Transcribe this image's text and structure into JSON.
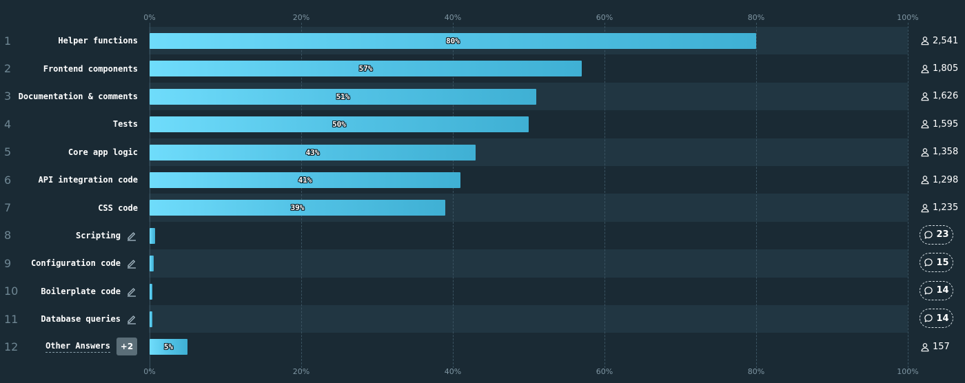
{
  "chart_data": {
    "type": "bar",
    "orientation": "horizontal",
    "xlim": [
      0,
      100
    ],
    "x_ticks": [
      "0%",
      "20%",
      "40%",
      "60%",
      "80%",
      "100%"
    ],
    "grid": true,
    "rows": [
      {
        "rank": "1",
        "label": "Helper functions",
        "value": 80,
        "value_label": "80%",
        "count": "2,541",
        "count_type": "users"
      },
      {
        "rank": "2",
        "label": "Frontend components",
        "value": 57,
        "value_label": "57%",
        "count": "1,805",
        "count_type": "users"
      },
      {
        "rank": "3",
        "label": "Documentation & comments",
        "value": 51,
        "value_label": "51%",
        "count": "1,626",
        "count_type": "users"
      },
      {
        "rank": "4",
        "label": "Tests",
        "value": 50,
        "value_label": "50%",
        "count": "1,595",
        "count_type": "users"
      },
      {
        "rank": "5",
        "label": "Core app logic",
        "value": 43,
        "value_label": "43%",
        "count": "1,358",
        "count_type": "users"
      },
      {
        "rank": "6",
        "label": "API integration code",
        "value": 41,
        "value_label": "41%",
        "count": "1,298",
        "count_type": "users"
      },
      {
        "rank": "7",
        "label": "CSS code",
        "value": 39,
        "value_label": "39%",
        "count": "1,235",
        "count_type": "users"
      },
      {
        "rank": "8",
        "label": "Scripting",
        "value": 0.7,
        "value_label": "",
        "count": "23",
        "count_type": "comments",
        "editable": true
      },
      {
        "rank": "9",
        "label": "Configuration code",
        "value": 0.5,
        "value_label": "",
        "count": "15",
        "count_type": "comments",
        "editable": true
      },
      {
        "rank": "10",
        "label": "Boilerplate code",
        "value": 0.4,
        "value_label": "",
        "count": "14",
        "count_type": "comments",
        "editable": true
      },
      {
        "rank": "11",
        "label": "Database queries",
        "value": 0.4,
        "value_label": "",
        "count": "14",
        "count_type": "comments",
        "editable": true
      },
      {
        "rank": "12",
        "label": "Other Answers",
        "value": 5,
        "value_label": "5%",
        "count": "157",
        "count_type": "users",
        "badge": "+2",
        "other": true
      }
    ]
  },
  "colors": {
    "background": "#1a2a34",
    "stripe": "#213642",
    "bar_start": "#6fdcfb",
    "bar_end": "#3fb0d4",
    "grid": "#3a5361",
    "tick_text": "#7f96a3"
  },
  "icons": {
    "users": "person-icon",
    "comments": "comment-bubble-icon",
    "edit": "pencil-icon"
  }
}
